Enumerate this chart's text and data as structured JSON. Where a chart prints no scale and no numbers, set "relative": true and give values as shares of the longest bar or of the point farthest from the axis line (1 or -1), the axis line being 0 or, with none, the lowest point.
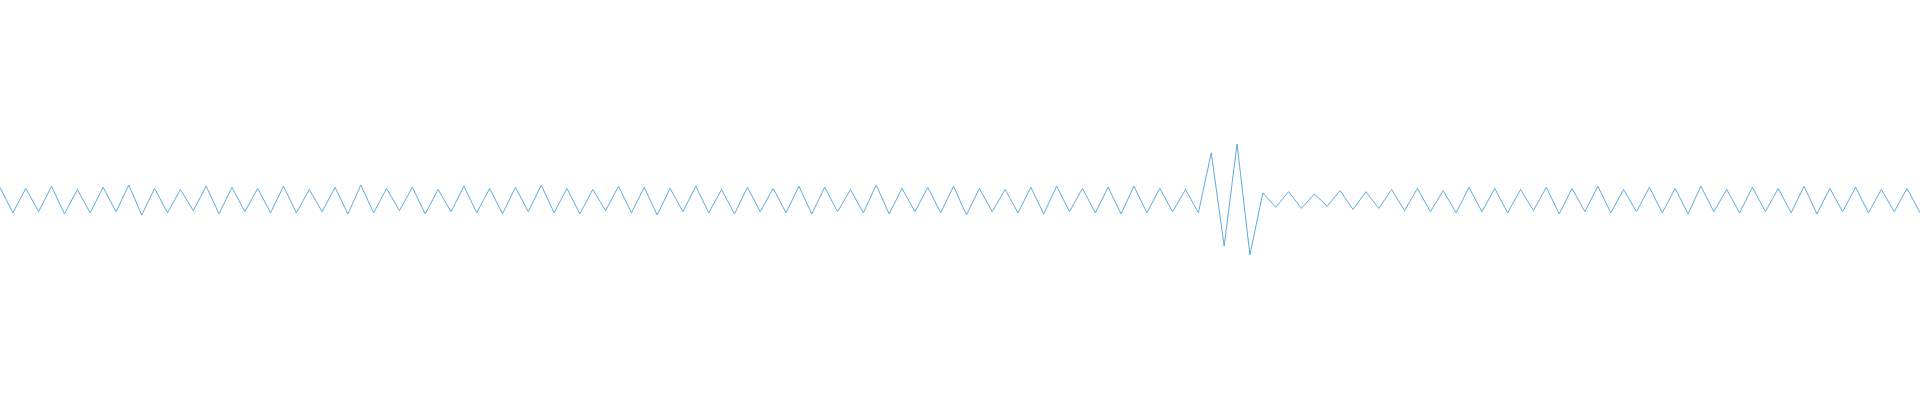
{
  "chart_data": {
    "type": "line",
    "relative": true,
    "marker": "none",
    "categories": [
      null,
      null,
      null,
      null,
      null,
      null,
      null,
      null,
      null,
      null,
      null,
      null,
      null,
      null,
      null,
      null,
      null,
      null,
      null,
      null,
      null,
      null,
      null,
      null,
      null,
      null,
      null,
      null,
      null,
      null,
      null,
      null,
      null,
      null,
      null,
      null,
      null,
      null,
      null,
      null,
      null,
      null,
      null,
      null,
      null,
      null,
      null,
      null,
      null,
      null,
      null,
      null,
      null,
      null,
      null,
      null,
      null,
      null,
      null,
      null,
      null,
      null,
      null,
      null,
      null,
      null,
      null,
      null,
      null,
      null,
      null,
      null,
      null,
      null,
      null,
      null,
      null,
      null,
      null,
      null,
      null,
      null,
      null,
      null,
      null,
      null,
      null,
      null,
      null,
      null,
      null,
      null,
      null,
      null,
      null,
      null,
      null,
      null,
      null,
      null,
      null,
      null,
      null,
      null,
      null,
      null,
      null,
      null,
      null,
      null,
      null,
      null,
      null,
      null,
      null,
      null,
      null,
      null,
      null,
      null,
      null,
      null,
      null,
      null,
      null,
      null,
      null,
      null,
      null,
      null,
      null,
      null,
      null,
      null,
      null,
      null,
      null,
      null,
      null,
      null,
      null,
      null,
      null,
      null,
      null,
      null,
      null,
      null,
      null,
      null
    ],
    "series": [
      {
        "color": "#5dade2",
        "values": [
          0.61,
          0.38,
          0.6,
          0.39,
          0.62,
          0.37,
          0.59,
          0.38,
          0.61,
          0.39,
          0.63,
          0.36,
          0.6,
          0.38,
          0.59,
          0.4,
          0.62,
          0.37,
          0.61,
          0.39,
          0.6,
          0.38,
          0.62,
          0.38,
          0.59,
          0.39,
          0.61,
          0.37,
          0.63,
          0.38,
          0.6,
          0.4,
          0.61,
          0.37,
          0.59,
          0.39,
          0.62,
          0.38,
          0.6,
          0.37,
          0.61,
          0.39,
          0.63,
          0.38,
          0.6,
          0.37,
          0.59,
          0.4,
          0.62,
          0.38,
          0.61,
          0.36,
          0.6,
          0.39,
          0.62,
          0.38,
          0.59,
          0.37,
          0.61,
          0.39,
          0.6,
          0.38,
          0.62,
          0.37,
          0.61,
          0.39,
          0.59,
          0.38,
          0.63,
          0.37,
          0.6,
          0.39,
          0.61,
          0.38,
          0.62,
          0.36,
          0.6,
          0.39,
          0.59,
          0.38,
          0.61,
          0.37,
          0.62,
          0.39,
          0.6,
          0.38,
          0.61,
          0.37,
          0.62,
          0.38,
          0.6,
          0.39,
          0.59,
          0.38,
          0.92,
          0.08,
          1,
          0,
          0.56,
          0.43,
          0.57,
          0.42,
          0.55,
          0.44,
          0.58,
          0.41,
          0.57,
          0.42,
          0.59,
          0.4,
          0.6,
          0.39,
          0.58,
          0.38,
          0.61,
          0.39,
          0.6,
          0.38,
          0.59,
          0.4,
          0.61,
          0.37,
          0.6,
          0.39,
          0.62,
          0.38,
          0.59,
          0.39,
          0.61,
          0.38,
          0.6,
          0.37,
          0.62,
          0.39,
          0.59,
          0.38,
          0.61,
          0.39,
          0.6,
          0.38,
          0.62,
          0.37,
          0.6,
          0.39,
          0.61,
          0.38,
          0.59,
          0.39,
          0.6,
          0.38
        ]
      }
    ]
  }
}
